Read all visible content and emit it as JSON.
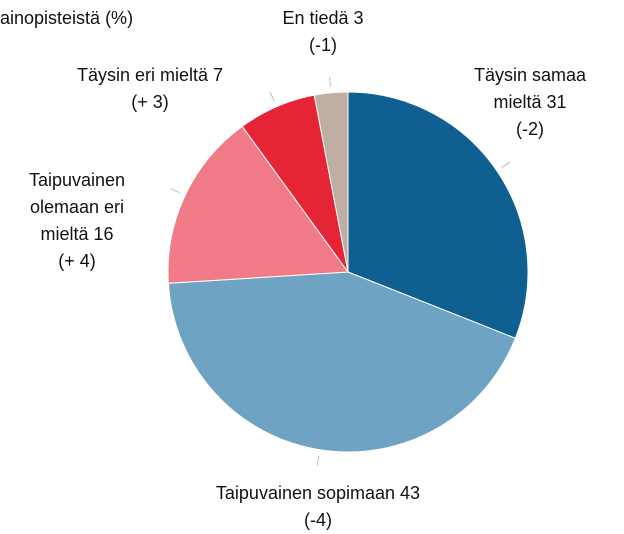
{
  "chart_data": {
    "type": "pie",
    "title": "ainopisteistä (%)",
    "categories": [
      "Täysin samaa mieltä",
      "Taipuvainen sopimaan",
      "Taipuvainen olemaan eri mieltä",
      "Täysin eri mieltä",
      "En tiedä"
    ],
    "values": [
      31,
      43,
      16,
      7,
      3
    ],
    "changes": [
      "(-2)",
      "(-4)",
      "(+ 4)",
      "(+ 3)",
      "(-1)"
    ],
    "colors": [
      "#0f5f91",
      "#6fa3c3",
      "#f07a85",
      "#e52535",
      "#bfaea3"
    ]
  }
}
